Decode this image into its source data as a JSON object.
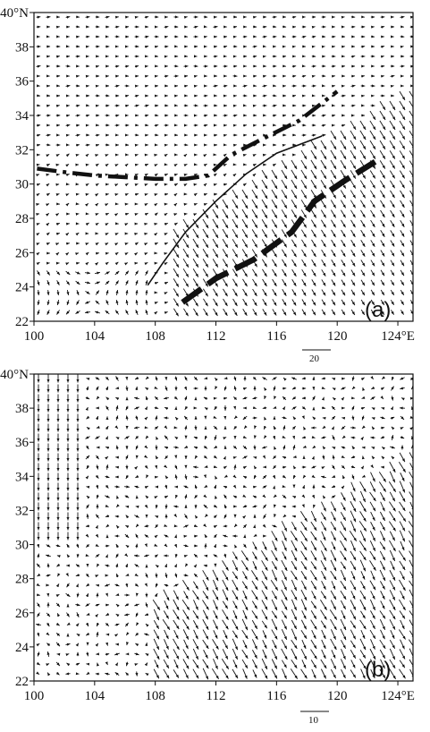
{
  "figure": {
    "panels": [
      {
        "id": "a",
        "tag": "(a)",
        "lon_ticks": [
          100,
          104,
          108,
          112,
          116,
          120,
          124
        ],
        "lon_tick_labels": [
          "100",
          "104",
          "108",
          "112",
          "116",
          "120",
          "124°E"
        ],
        "lat_ticks": [
          22,
          24,
          26,
          28,
          30,
          32,
          34,
          36,
          38,
          40
        ],
        "lat_tick_labels": [
          "22",
          "24",
          "26",
          "28",
          "30",
          "32",
          "34",
          "36",
          "38",
          "40°N"
        ],
        "lon_range": [
          100,
          125
        ],
        "lat_range": [
          22,
          40
        ],
        "reference_vector": "20",
        "lines": [
          {
            "style": "dash-dot",
            "points": [
              [
                100.2,
                30.9
              ],
              [
                102,
                30.7
              ],
              [
                104,
                30.5
              ],
              [
                106,
                30.4
              ],
              [
                108,
                30.3
              ],
              [
                110,
                30.3
              ],
              [
                111.5,
                30.5
              ],
              [
                113,
                31.7
              ],
              [
                115,
                32.6
              ],
              [
                117.5,
                33.7
              ],
              [
                120,
                35.4
              ]
            ]
          },
          {
            "style": "solid",
            "points": [
              [
                107.5,
                24.1
              ],
              [
                108.5,
                25.4
              ],
              [
                110,
                27.2
              ],
              [
                112,
                29.0
              ],
              [
                114,
                30.6
              ],
              [
                116,
                31.8
              ],
              [
                119,
                32.8
              ]
            ]
          },
          {
            "style": "dashed-thick",
            "points": [
              [
                109.8,
                23.1
              ],
              [
                112,
                24.5
              ],
              [
                114.5,
                25.6
              ],
              [
                117,
                27.2
              ],
              [
                118.5,
                29.0
              ],
              [
                120.5,
                30.2
              ],
              [
                122.5,
                31.3
              ]
            ]
          }
        ]
      },
      {
        "id": "b",
        "tag": "(b)",
        "lon_ticks": [
          100,
          104,
          108,
          112,
          116,
          120,
          124
        ],
        "lon_tick_labels": [
          "100",
          "104",
          "108",
          "112",
          "116",
          "120",
          "124°E"
        ],
        "lat_ticks": [
          22,
          24,
          26,
          28,
          30,
          32,
          34,
          36,
          38,
          40
        ],
        "lat_tick_labels": [
          "22",
          "24",
          "26",
          "28",
          "30",
          "32",
          "34",
          "36",
          "38",
          "40°N"
        ],
        "lon_range": [
          100,
          125
        ],
        "lat_range": [
          22,
          40
        ],
        "reference_vector": "10"
      }
    ]
  }
}
